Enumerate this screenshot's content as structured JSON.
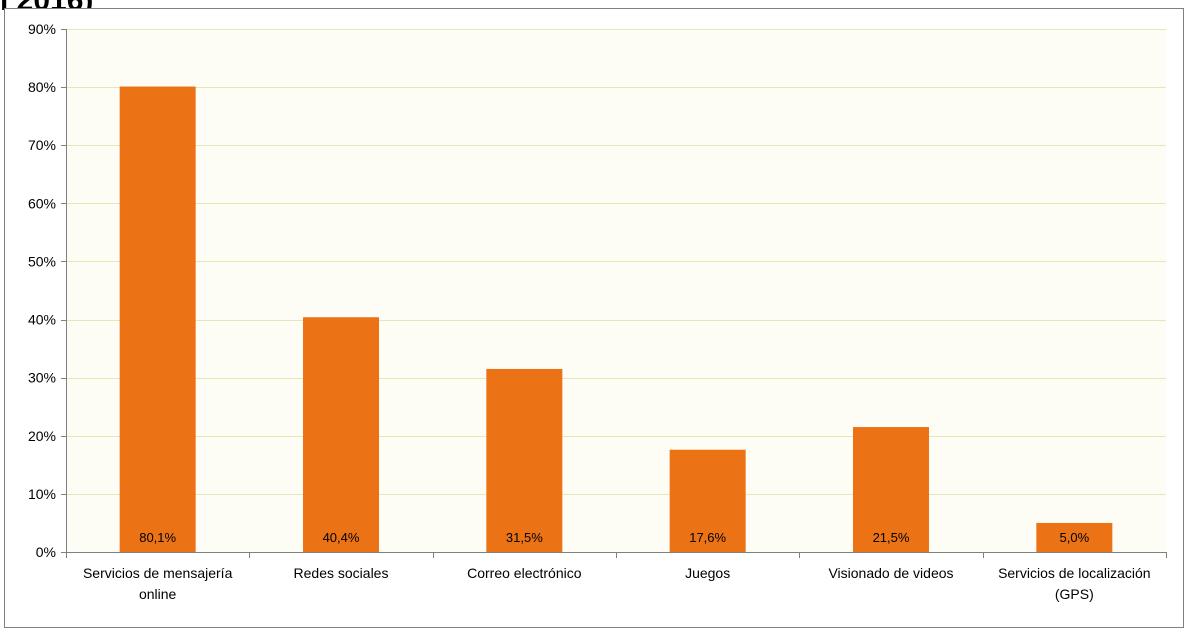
{
  "title_fragment": "l 2016)",
  "colors": {
    "bar": "#EC7216",
    "plot_background": "#FDFDF5",
    "grid": "#E6E6B8",
    "axis": "#808080"
  },
  "chart_data": {
    "type": "bar",
    "categories": [
      [
        "Servicios de mensajería",
        "online"
      ],
      [
        "Redes sociales"
      ],
      [
        "Correo electrónico"
      ],
      [
        "Juegos"
      ],
      [
        "Visionado de videos"
      ],
      [
        "Servicios de localización",
        "(GPS)"
      ]
    ],
    "values": [
      80.1,
      40.4,
      31.5,
      17.6,
      21.5,
      5.0
    ],
    "data_labels": [
      "80,1%",
      "40,4%",
      "31,5%",
      "17,6%",
      "21,5%",
      "5,0%"
    ],
    "ylim": [
      0,
      90
    ],
    "yticks": [
      0,
      10,
      20,
      30,
      40,
      50,
      60,
      70,
      80,
      90
    ],
    "ytick_labels": [
      "0%",
      "10%",
      "20%",
      "30%",
      "40%",
      "50%",
      "60%",
      "70%",
      "80%",
      "90%"
    ],
    "grid": true,
    "legend": "none",
    "data_label_position": "inside-base"
  }
}
